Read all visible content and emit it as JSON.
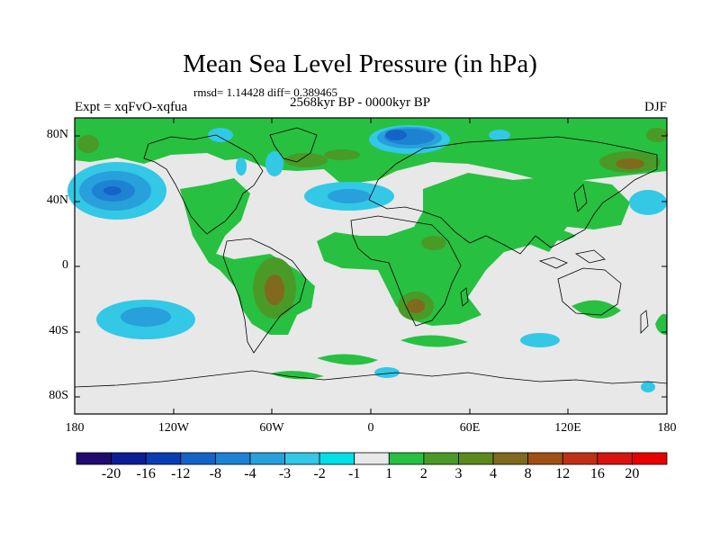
{
  "title": "Mean Sea Level Pressure (in hPa)",
  "stats": "rmsd= 1.14428 diff= 0.389465",
  "experiment": "Expt = xqFvO-xqfua",
  "period": "2568kyr BP - 0000kyr BP",
  "season": "DJF",
  "map": {
    "lat_ticks": [
      "80N",
      "40N",
      "0",
      "40S",
      "80S"
    ],
    "lon_ticks": [
      "180",
      "120W",
      "60W",
      "0",
      "60E",
      "120E",
      "180"
    ],
    "background_color": "#e8e8e8"
  },
  "colorbar": {
    "labels": [
      "-20",
      "-16",
      "-12",
      "-8",
      "-4",
      "-3",
      "-2",
      "-1",
      "1",
      "2",
      "3",
      "4",
      "8",
      "12",
      "16",
      "20"
    ],
    "colors": [
      "#200a6e",
      "#0a1e96",
      "#0a3cb4",
      "#1464c8",
      "#1e82d2",
      "#28a0dc",
      "#32c8e6",
      "#00e0e8",
      "#e8e8e8",
      "#28c040",
      "#4a9a28",
      "#5a8a1e",
      "#806a1e",
      "#a05014",
      "#c03014",
      "#d81410",
      "#e80000"
    ]
  }
}
